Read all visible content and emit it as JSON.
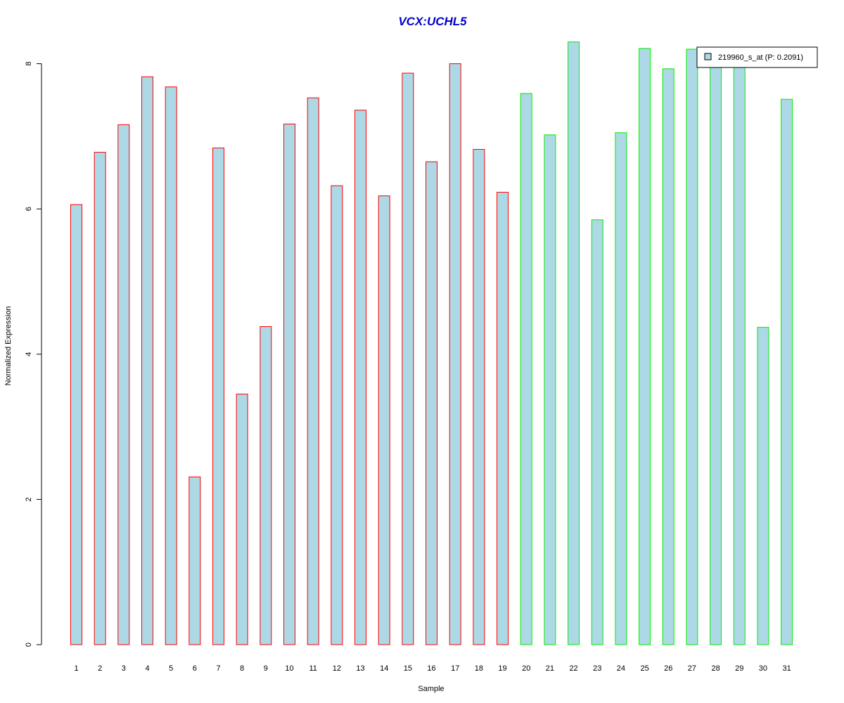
{
  "chart_data": {
    "type": "bar",
    "title": "VCX:UCHL5",
    "xlabel": "Sample",
    "ylabel": "Normalized Expression",
    "ylim": [
      0,
      8.3
    ],
    "y_ticks": [
      "0",
      "2",
      "4",
      "6",
      "8"
    ],
    "categories": [
      "1",
      "2",
      "3",
      "4",
      "5",
      "6",
      "7",
      "8",
      "9",
      "10",
      "11",
      "12",
      "13",
      "14",
      "15",
      "16",
      "17",
      "18",
      "19",
      "20",
      "21",
      "22",
      "23",
      "24",
      "25",
      "26",
      "27",
      "28",
      "29",
      "30",
      "31"
    ],
    "series": [
      {
        "name": "219960_s_at (P: 0.2091)",
        "values": [
          6.06,
          6.78,
          7.16,
          7.82,
          7.68,
          2.31,
          6.84,
          3.45,
          4.38,
          7.17,
          7.53,
          6.32,
          7.36,
          6.18,
          7.87,
          6.65,
          8.0,
          6.82,
          6.23,
          7.59,
          7.02,
          8.3,
          5.85,
          7.05,
          8.21,
          7.93,
          8.2,
          8.08,
          8.1,
          4.37,
          7.51
        ]
      }
    ],
    "bar_group": [
      "red",
      "red",
      "red",
      "red",
      "red",
      "red",
      "red",
      "red",
      "red",
      "red",
      "red",
      "red",
      "red",
      "red",
      "red",
      "red",
      "red",
      "red",
      "red",
      "green",
      "green",
      "green",
      "green",
      "green",
      "green",
      "green",
      "green",
      "green",
      "green",
      "green",
      "green"
    ],
    "legend": {
      "placement": "top-right",
      "entries": [
        "219960_s_at (P: 0.2091)"
      ]
    },
    "grid": false,
    "colors": {
      "title": "#0000cc",
      "bar_fill": "#add8e6",
      "bar_border_red": "#ff0000",
      "bar_border_green": "#00ee00",
      "axis": "#000000"
    }
  }
}
